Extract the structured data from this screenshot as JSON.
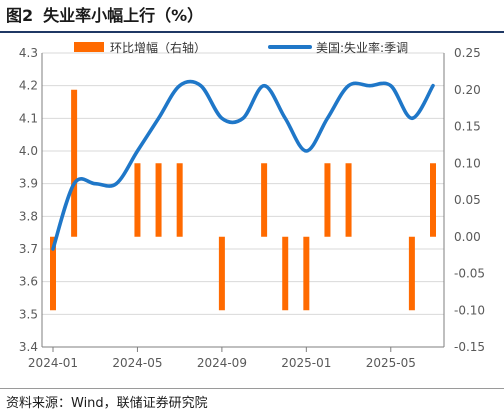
{
  "figure": {
    "number": "图2",
    "title": "失业率小幅上行（%）",
    "source": "资料来源：Wind，联储证券研究院"
  },
  "colors": {
    "bar": "#ff6a00",
    "line": "#1f77c8",
    "grid": "#d9d9d9",
    "axis_text": "#595959",
    "title_rule": "#1f3864"
  },
  "chart_data": {
    "type": "bar+line",
    "grid": true,
    "legend_position": "top",
    "x_tick_labels": [
      "2024-01",
      "2024-05",
      "2024-09",
      "2025-01",
      "2025-05"
    ],
    "months": [
      "2024-01",
      "2024-02",
      "2024-03",
      "2024-04",
      "2024-05",
      "2024-06",
      "2024-07",
      "2024-08",
      "2024-09",
      "2024-10",
      "2024-11",
      "2024-12",
      "2025-01",
      "2025-02",
      "2025-03",
      "2025-04",
      "2025-05",
      "2025-06",
      "2025-07"
    ],
    "left_axis": {
      "ylim": [
        3.4,
        4.3
      ],
      "ticks": [
        "3.4",
        "3.5",
        "3.6",
        "3.7",
        "3.8",
        "3.9",
        "4.0",
        "4.1",
        "4.2",
        "4.3"
      ]
    },
    "right_axis": {
      "ylim": [
        -0.15,
        0.25
      ],
      "ticks": [
        "-0.15",
        "-0.10",
        "-0.05",
        "0.00",
        "0.05",
        "0.10",
        "0.15",
        "0.20",
        "0.25"
      ]
    },
    "series": [
      {
        "name": "环比增幅（右轴）",
        "type": "bar",
        "axis": "right",
        "values": [
          -0.1,
          0.2,
          0.0,
          0.0,
          0.1,
          0.1,
          0.1,
          0.0,
          -0.1,
          0.0,
          0.1,
          -0.1,
          -0.1,
          0.1,
          0.1,
          0.0,
          0.0,
          -0.1,
          0.1
        ]
      },
      {
        "name": "美国:失业率:季调",
        "type": "line",
        "axis": "left",
        "values": [
          3.7,
          3.9,
          3.9,
          3.9,
          4.0,
          4.1,
          4.2,
          4.2,
          4.1,
          4.1,
          4.2,
          4.1,
          4.0,
          4.1,
          4.2,
          4.2,
          4.2,
          4.1,
          4.2
        ]
      }
    ]
  }
}
